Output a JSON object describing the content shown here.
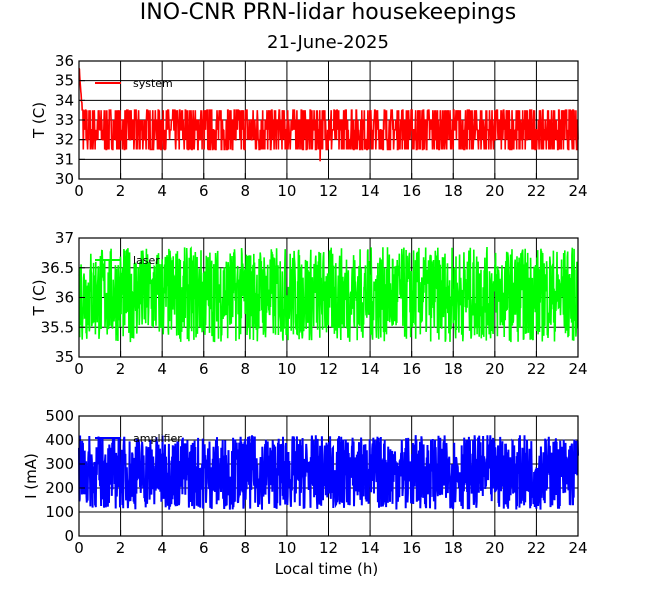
{
  "title": "INO-CNR PRN-lidar housekeepings",
  "subtitle": "21-June-2025",
  "chart_data": [
    {
      "type": "line",
      "ylabel": "T (C)",
      "xlabel": "",
      "xlim": [
        0,
        24
      ],
      "ylim": [
        30,
        36
      ],
      "x_ticks": [
        "0",
        "2",
        "4",
        "6",
        "8",
        "10",
        "12",
        "14",
        "16",
        "18",
        "20",
        "22",
        "24"
      ],
      "y_ticks": [
        "30",
        "31",
        "32",
        "33",
        "34",
        "35",
        "36"
      ],
      "grid": true,
      "legend_placement": "top-left",
      "series": [
        {
          "name": "system",
          "color": "#ff0000",
          "noise": "quantized",
          "baseline": 32.3,
          "band": [
            31.5,
            33.5
          ],
          "peak": {
            "x": 0.05,
            "y": 35.9
          },
          "dip": {
            "x": 11.6,
            "y": 30.9
          }
        }
      ]
    },
    {
      "type": "line",
      "ylabel": "T (C)",
      "xlabel": "",
      "xlim": [
        0,
        24
      ],
      "ylim": [
        35,
        37
      ],
      "x_ticks": [
        "0",
        "2",
        "4",
        "6",
        "8",
        "10",
        "12",
        "14",
        "16",
        "18",
        "20",
        "22",
        "24"
      ],
      "y_ticks": [
        "35",
        "35.5",
        "36",
        "36.5",
        "37"
      ],
      "grid": true,
      "legend_placement": "top-left",
      "series": [
        {
          "name": "laser",
          "color": "#00ff00",
          "noise": "continuous",
          "baseline": 36.0,
          "band": [
            35.25,
            36.85
          ]
        }
      ]
    },
    {
      "type": "line",
      "ylabel": "I (mA)",
      "xlabel": "Local time (h)",
      "xlim": [
        0,
        24
      ],
      "ylim": [
        0,
        500
      ],
      "x_ticks": [
        "0",
        "2",
        "4",
        "6",
        "8",
        "10",
        "12",
        "14",
        "16",
        "18",
        "20",
        "22",
        "24"
      ],
      "y_ticks": [
        "0",
        "100",
        "200",
        "300",
        "400",
        "500"
      ],
      "grid": true,
      "legend_placement": "top-left",
      "series": [
        {
          "name": "amplifier",
          "color": "#0000ff",
          "noise": "dense",
          "baseline": 265,
          "band": [
            110,
            420
          ]
        }
      ]
    }
  ]
}
